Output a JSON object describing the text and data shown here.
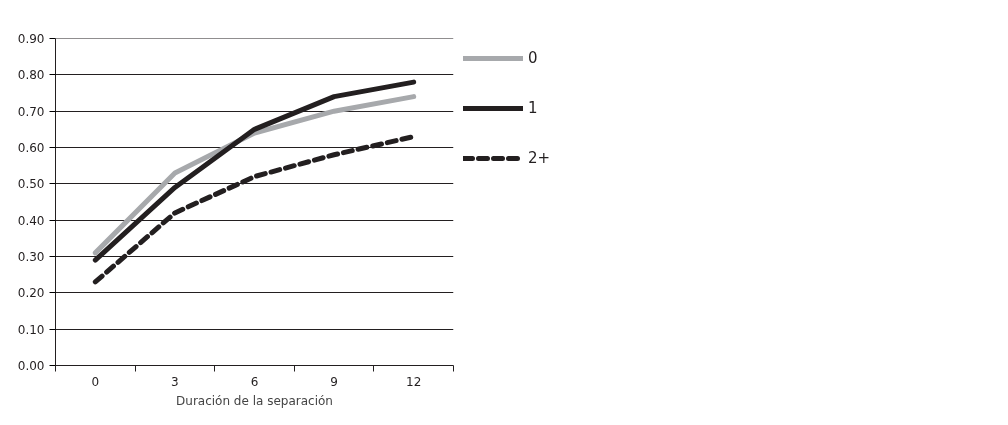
{
  "chart_data": {
    "type": "line",
    "xlabel": "Duración de la separación",
    "categories": [
      "0",
      "3",
      "6",
      "9",
      "12"
    ],
    "series": [
      {
        "name": "0",
        "color": "#a7a9ac",
        "line_style": "solid",
        "values": [
          0.31,
          0.53,
          0.64,
          0.7,
          0.74
        ]
      },
      {
        "name": "1",
        "color": "#231f20",
        "line_style": "solid",
        "values": [
          0.29,
          0.49,
          0.65,
          0.74,
          0.78
        ]
      },
      {
        "name": "2+",
        "color": "#231f20",
        "line_style": "dashed",
        "values": [
          0.23,
          0.42,
          0.52,
          0.58,
          0.63
        ]
      }
    ],
    "ylim": [
      0,
      0.9
    ],
    "yticks": [
      {
        "value": 0,
        "label": "0.00"
      },
      {
        "value": 0.1,
        "label": "0.10"
      },
      {
        "value": 0.2,
        "label": "0.20"
      },
      {
        "value": 0.3,
        "label": "0.30"
      },
      {
        "value": 0.4,
        "label": "0.40"
      },
      {
        "value": 0.5,
        "label": "0.50"
      },
      {
        "value": 0.6,
        "label": "0.60"
      },
      {
        "value": 0.7,
        "label": "0.70"
      },
      {
        "value": 0.8,
        "label": "0.80"
      },
      {
        "value": 0.9,
        "label": "0.90"
      }
    ],
    "grid": "y",
    "legend": "right",
    "marker": "none"
  }
}
